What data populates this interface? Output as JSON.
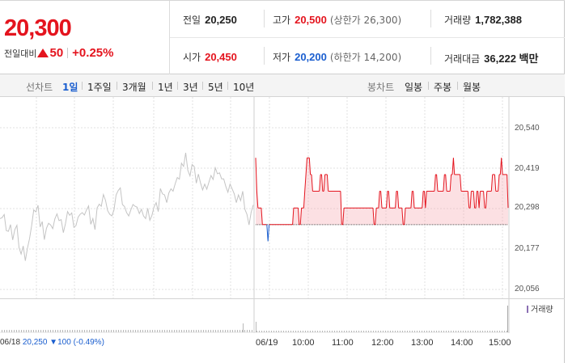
{
  "quote": {
    "price": "20,300",
    "change_label": "전일대비",
    "change_value": "50",
    "change_pct": "+0.25%"
  },
  "stats": {
    "prev_close": {
      "label": "전일",
      "value": "20,250"
    },
    "high": {
      "label": "고가",
      "value": "20,500",
      "sub": "(상한가 26,300)"
    },
    "volume": {
      "label": "거래량",
      "value": "1,782,388"
    },
    "open": {
      "label": "시가",
      "value": "20,450"
    },
    "low": {
      "label": "저가",
      "value": "20,200",
      "sub": "(하한가 14,200)"
    },
    "amount": {
      "label": "거래대금",
      "value": "36,222 백만"
    }
  },
  "toolbar": {
    "line_label": "선차트",
    "periods": [
      "1일",
      "1주일",
      "3개월",
      "1년",
      "3년",
      "5년",
      "10년"
    ],
    "selected_period": "1일",
    "candle_label": "봉차트",
    "candles": [
      "일봉",
      "주봉",
      "월봉"
    ]
  },
  "chart_data": {
    "type": "line",
    "y_ticks": [
      "20,540",
      "20,419",
      "20,298",
      "20,177",
      "20,056"
    ],
    "ylim": [
      20056,
      20540
    ],
    "reference_price": 20250,
    "prev_day_date": "06/18",
    "prev_day_info": {
      "close": "20,250",
      "change": "100",
      "pct": "(-0.49%)"
    },
    "today_date": "06/19",
    "x_ticks": [
      "10:00",
      "11:00",
      "12:00",
      "13:00",
      "14:00",
      "15:00"
    ],
    "prev_day_series": [
      20268,
      20271,
      20280,
      20232,
      20230,
      20250,
      20204,
      20235,
      20248,
      20181,
      20162,
      20186,
      20142,
      20179,
      20208,
      20247,
      20294,
      20288,
      20308,
      20243,
      20259,
      20205,
      20239,
      20254,
      20249,
      20238,
      20267,
      20282,
      20262,
      20265,
      20226,
      20253,
      20289,
      20278,
      20285,
      20242,
      20247,
      20272,
      20281,
      20286,
      20279,
      20294,
      20306,
      20251,
      20268,
      20235,
      20300,
      20311,
      20305,
      20340,
      20323,
      20292,
      20281,
      20276,
      20293,
      20339,
      20352,
      20360,
      20310,
      20304,
      20286,
      20276,
      20294,
      20310,
      20305,
      20302,
      20283,
      20296,
      20276,
      20268,
      20299,
      20263,
      20278,
      20303,
      20316,
      20289,
      20358,
      20342,
      20339,
      20316,
      20345,
      20357,
      20350,
      20372,
      20391,
      20386,
      20434,
      20424,
      20465,
      20413,
      20396,
      20430,
      20424,
      20374,
      20401,
      20375,
      20354,
      20371,
      20356,
      20377,
      20397,
      20385,
      20420,
      20402,
      20405,
      20387,
      20387,
      20364,
      20347,
      20371,
      20357,
      20342,
      20316,
      20339,
      20322,
      20350,
      20296,
      20281,
      20249,
      20287,
      20309
    ],
    "today_series": [
      20450,
      20350,
      20300,
      20300,
      20300,
      20300,
      20250,
      20250,
      20250,
      20250,
      20250,
      20200,
      20250,
      20250,
      20250,
      20250,
      20250,
      20250,
      20250,
      20250,
      20250,
      20250,
      20250,
      20250,
      20250,
      20250,
      20250,
      20250,
      20250,
      20250,
      20250,
      20250,
      20250,
      20250,
      20300,
      20300,
      20300,
      20300,
      20300,
      20250,
      20250,
      20300,
      20300,
      20300,
      20350,
      20400,
      20450,
      20450,
      20450,
      20400,
      20400,
      20350,
      20350,
      20350,
      20350,
      20350,
      20350,
      20350,
      20400,
      20400,
      20350,
      20350,
      20400,
      20400,
      20400,
      20350,
      20350,
      20350,
      20350,
      20350,
      20350,
      20350,
      20350,
      20350,
      20350,
      20350,
      20350,
      20250,
      20250,
      20300,
      20300,
      20300,
      20300,
      20300,
      20300,
      20300,
      20300,
      20300,
      20300,
      20300,
      20300,
      20300,
      20300,
      20300,
      20300,
      20300,
      20300,
      20300,
      20300,
      20300,
      20300,
      20300,
      20300,
      20300,
      20300,
      20300,
      20250,
      20250,
      20300,
      20300,
      20300,
      20350,
      20350,
      20300,
      20300,
      20300,
      20300,
      20300,
      20350,
      20350,
      20300,
      20300,
      20300,
      20300,
      20300,
      20300,
      20350,
      20350,
      20300,
      20300,
      20300,
      20300,
      20250,
      20250,
      20300,
      20300,
      20300,
      20300,
      20300,
      20300,
      20350,
      20350,
      20300,
      20300,
      20300,
      20300,
      20300,
      20300,
      20300,
      20300,
      20350,
      20350,
      20300,
      20350,
      20350,
      20350,
      20350,
      20350,
      20350,
      20350,
      20350,
      20400,
      20400,
      20350,
      20350,
      20350,
      20350,
      20350,
      20350,
      20400,
      20400,
      20350,
      20350,
      20350,
      20350,
      20400,
      20400,
      20450,
      20400,
      20400,
      20400,
      20400,
      20400,
      20400,
      20350,
      20350,
      20350,
      20350,
      20350,
      20350,
      20350,
      20300,
      20300,
      20350,
      20350,
      20350,
      20300,
      20300,
      20350,
      20350,
      20300,
      20350,
      20350,
      20350,
      20350,
      20300,
      20300,
      20350,
      20350,
      20350,
      20350,
      20350,
      20400,
      20400,
      20400,
      20350,
      20350,
      20350,
      20400,
      20400,
      20450,
      20400,
      20400,
      20400,
      20400,
      20400,
      20300
    ],
    "volume_legend": "거래량"
  }
}
